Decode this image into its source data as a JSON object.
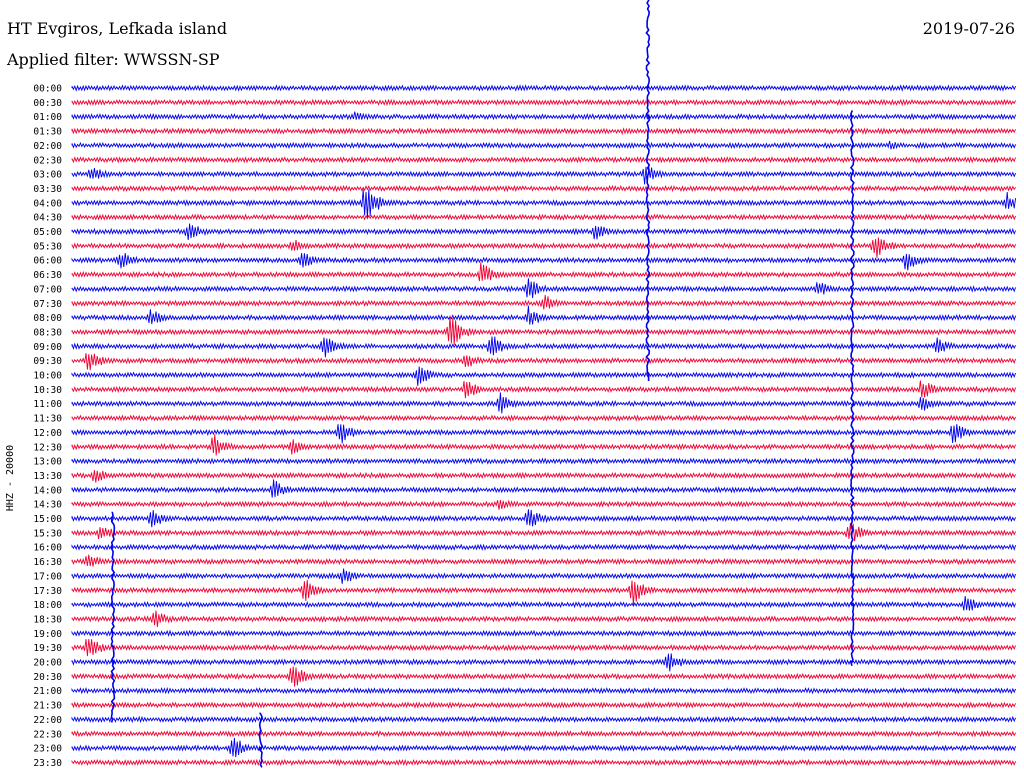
{
  "header": {
    "station": "HT Evgiros, Lefkada island",
    "date": "2019-07-26",
    "filter": "Applied filter: WWSSN-SP"
  },
  "axis": {
    "side_label": "HHZ - 20000"
  },
  "chart_data": {
    "type": "helicorder",
    "title": "HT Evgiros, Lefkada island",
    "date": "2019-07-26",
    "filter": "WWSSN-SP",
    "ylabel": "HHZ - 20000",
    "trace_colors": [
      "#0000ee",
      "#ee0033"
    ],
    "row_labels": [
      "00:00",
      "00:30",
      "01:00",
      "01:30",
      "02:00",
      "02:30",
      "03:00",
      "03:30",
      "04:00",
      "04:30",
      "05:00",
      "05:30",
      "06:00",
      "06:30",
      "07:00",
      "07:30",
      "08:00",
      "08:30",
      "09:00",
      "09:30",
      "10:00",
      "10:30",
      "11:00",
      "11:30",
      "12:00",
      "12:30",
      "13:00",
      "13:30",
      "14:00",
      "14:30",
      "15:00",
      "15:30",
      "16:00",
      "16:30",
      "17:00",
      "17:30",
      "18:00",
      "18:30",
      "19:00",
      "19:30",
      "20:00",
      "20:30",
      "21:00",
      "21:30",
      "22:00",
      "22:30",
      "23:00",
      "23:30"
    ],
    "minutes_per_line": 30,
    "events": [
      {
        "row": 1,
        "minute": 15.0,
        "amp": 2
      },
      {
        "row": 2,
        "minute": 9.0,
        "amp": 6
      },
      {
        "row": 3,
        "minute": 17.5,
        "amp": 3
      },
      {
        "row": 4,
        "minute": 26.0,
        "amp": 5
      },
      {
        "row": 6,
        "minute": 0.6,
        "amp": 10
      },
      {
        "row": 6,
        "minute": 18.2,
        "amp": 12
      },
      {
        "row": 8,
        "minute": 9.3,
        "amp": 22
      },
      {
        "row": 8,
        "minute": 29.7,
        "amp": 12
      },
      {
        "row": 10,
        "minute": 3.7,
        "amp": 12
      },
      {
        "row": 10,
        "minute": 16.6,
        "amp": 10
      },
      {
        "row": 11,
        "minute": 7.0,
        "amp": 8
      },
      {
        "row": 11,
        "minute": 25.5,
        "amp": 16
      },
      {
        "row": 12,
        "minute": 1.5,
        "amp": 12
      },
      {
        "row": 12,
        "minute": 7.3,
        "amp": 10
      },
      {
        "row": 12,
        "minute": 26.5,
        "amp": 12
      },
      {
        "row": 13,
        "minute": 13.0,
        "amp": 14
      },
      {
        "row": 14,
        "minute": 14.5,
        "amp": 14
      },
      {
        "row": 14,
        "minute": 23.7,
        "amp": 10
      },
      {
        "row": 15,
        "minute": 15.0,
        "amp": 10
      },
      {
        "row": 16,
        "minute": 2.5,
        "amp": 10
      },
      {
        "row": 16,
        "minute": 14.5,
        "amp": 12
      },
      {
        "row": 17,
        "minute": 12.0,
        "amp": 20
      },
      {
        "row": 18,
        "minute": 8.0,
        "amp": 16
      },
      {
        "row": 18,
        "minute": 13.3,
        "amp": 14
      },
      {
        "row": 18,
        "minute": 27.5,
        "amp": 10
      },
      {
        "row": 19,
        "minute": 0.5,
        "amp": 14
      },
      {
        "row": 19,
        "minute": 12.5,
        "amp": 10
      },
      {
        "row": 20,
        "minute": 11.0,
        "amp": 12
      },
      {
        "row": 21,
        "minute": 12.5,
        "amp": 12
      },
      {
        "row": 21,
        "minute": 27.0,
        "amp": 12
      },
      {
        "row": 22,
        "minute": 13.6,
        "amp": 12
      },
      {
        "row": 22,
        "minute": 27.0,
        "amp": 10
      },
      {
        "row": 24,
        "minute": 8.5,
        "amp": 14
      },
      {
        "row": 24,
        "minute": 28.0,
        "amp": 12
      },
      {
        "row": 25,
        "minute": 4.5,
        "amp": 14
      },
      {
        "row": 25,
        "minute": 7.0,
        "amp": 10
      },
      {
        "row": 27,
        "minute": 0.7,
        "amp": 10
      },
      {
        "row": 28,
        "minute": 6.4,
        "amp": 12
      },
      {
        "row": 29,
        "minute": 13.6,
        "amp": 8
      },
      {
        "row": 30,
        "minute": 2.5,
        "amp": 12
      },
      {
        "row": 30,
        "minute": 14.5,
        "amp": 14
      },
      {
        "row": 31,
        "minute": 0.9,
        "amp": 10
      },
      {
        "row": 31,
        "minute": 24.7,
        "amp": 14
      },
      {
        "row": 33,
        "minute": 0.5,
        "amp": 10
      },
      {
        "row": 34,
        "minute": 8.6,
        "amp": 10
      },
      {
        "row": 35,
        "minute": 7.4,
        "amp": 14
      },
      {
        "row": 35,
        "minute": 17.8,
        "amp": 18
      },
      {
        "row": 36,
        "minute": 28.4,
        "amp": 10
      },
      {
        "row": 37,
        "minute": 2.6,
        "amp": 12
      },
      {
        "row": 39,
        "minute": 0.5,
        "amp": 14
      },
      {
        "row": 40,
        "minute": 18.9,
        "amp": 14
      },
      {
        "row": 41,
        "minute": 7.0,
        "amp": 14
      },
      {
        "row": 46,
        "minute": 5.1,
        "amp": 14
      }
    ],
    "major_spikes": [
      {
        "minute": 18.3,
        "from_row": 0,
        "to_row": 20
      },
      {
        "minute": 24.8,
        "from_row": 2,
        "to_row": 40
      },
      {
        "minute": 1.3,
        "from_row": 30,
        "to_row": 44
      },
      {
        "minute": 6.0,
        "from_row": 44,
        "to_row": 47
      }
    ]
  }
}
